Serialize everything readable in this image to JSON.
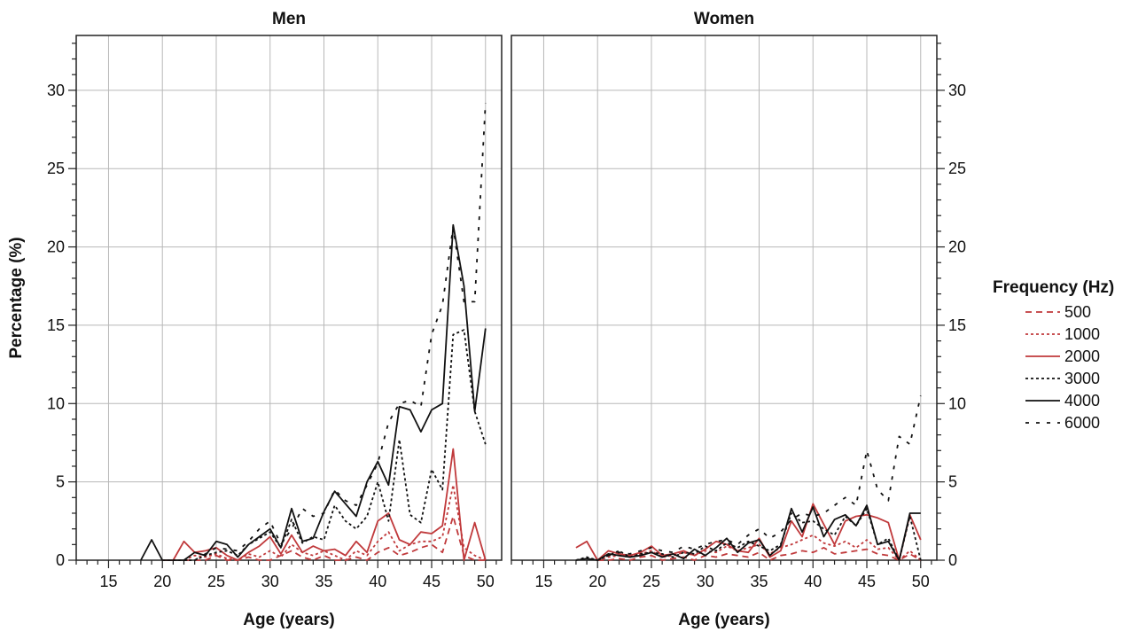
{
  "chart_data": [
    {
      "type": "line",
      "title": "Men",
      "xlabel": "Age (years)",
      "ylabel": "Percentage (%)",
      "xlim": [
        12,
        51.5
      ],
      "ylim": [
        0,
        33.5
      ],
      "xticks": [
        15,
        20,
        25,
        30,
        35,
        40,
        45,
        50
      ],
      "yticks": [
        0,
        5,
        10,
        15,
        20,
        25,
        30
      ],
      "grid": true,
      "series": [
        {
          "name": "500",
          "style": "dash",
          "color": "#c0393b",
          "x": [
            22,
            23,
            24,
            25,
            26,
            27,
            28,
            29,
            30,
            31,
            32,
            33,
            34,
            35,
            36,
            37,
            38,
            39,
            40,
            41,
            42,
            43,
            44,
            45,
            46,
            47,
            48,
            49,
            50
          ],
          "y": [
            0,
            0,
            0,
            0.3,
            0,
            0,
            0.2,
            0,
            0,
            0.3,
            0.6,
            0.2,
            0,
            0.3,
            0,
            0,
            0.2,
            0,
            0.5,
            0.8,
            0.3,
            0.5,
            0.8,
            1.0,
            0.5,
            2.8,
            0.3,
            0,
            0
          ]
        },
        {
          "name": "1000",
          "style": "dot",
          "color": "#c0393b",
          "x": [
            22,
            23,
            24,
            25,
            26,
            27,
            28,
            29,
            30,
            31,
            32,
            33,
            34,
            35,
            36,
            37,
            38,
            39,
            40,
            41,
            42,
            43,
            44,
            45,
            46,
            47,
            48,
            49,
            50
          ],
          "y": [
            0,
            0.3,
            0.2,
            0.4,
            0.1,
            0,
            0.4,
            0.2,
            0.6,
            0.2,
            1.0,
            0.5,
            0.3,
            0.6,
            0.3,
            0,
            0.6,
            0.3,
            1.2,
            1.8,
            0.6,
            1.0,
            1.2,
            1.2,
            1.5,
            4.8,
            0.8,
            0.3,
            0
          ]
        },
        {
          "name": "2000",
          "style": "solid",
          "color": "#c0393b",
          "x": [
            20,
            21,
            22,
            23,
            24,
            25,
            26,
            27,
            28,
            29,
            30,
            31,
            32,
            33,
            34,
            35,
            36,
            37,
            38,
            39,
            40,
            41,
            42,
            43,
            44,
            45,
            46,
            47,
            48,
            49,
            50
          ],
          "y": [
            0,
            0,
            1.2,
            0.5,
            0.6,
            0.8,
            0.3,
            0,
            0.5,
            0.9,
            1.5,
            0.4,
            1.6,
            0.5,
            0.9,
            0.6,
            0.7,
            0.3,
            1.2,
            0.5,
            2.5,
            3.0,
            1.3,
            1.0,
            1.8,
            1.7,
            2.2,
            7.1,
            0,
            2.4,
            0
          ]
        },
        {
          "name": "3000",
          "style": "dot",
          "color": "#111111",
          "x": [
            20,
            21,
            22,
            23,
            24,
            25,
            26,
            27,
            28,
            29,
            30,
            31,
            32,
            33,
            34,
            35,
            36,
            37,
            38,
            39,
            40,
            41,
            42,
            43,
            44,
            45,
            46,
            47,
            48,
            49,
            50
          ],
          "y": [
            0,
            0,
            0,
            0,
            0.3,
            0.5,
            0.6,
            0.3,
            1.0,
            1.4,
            1.8,
            0.8,
            2.6,
            1.1,
            1.5,
            1.3,
            3.5,
            2.5,
            2.0,
            2.8,
            5.0,
            2.5,
            7.7,
            2.9,
            2.4,
            5.8,
            4.5,
            14.4,
            14.7,
            9.5,
            7.4
          ]
        },
        {
          "name": "4000",
          "style": "solid",
          "color": "#111111",
          "x": [
            18,
            19,
            20,
            21,
            22,
            23,
            24,
            25,
            26,
            27,
            28,
            29,
            30,
            31,
            32,
            33,
            34,
            35,
            36,
            37,
            38,
            39,
            40,
            41,
            42,
            43,
            44,
            45,
            46,
            47,
            48,
            49,
            50
          ],
          "y": [
            0,
            1.3,
            0,
            0,
            0,
            0.5,
            0.3,
            1.2,
            1.0,
            0.2,
            1.0,
            1.5,
            2.0,
            0.8,
            3.3,
            1.2,
            1.4,
            3.1,
            4.4,
            3.6,
            2.8,
            5.0,
            6.3,
            4.8,
            9.8,
            9.6,
            8.2,
            9.6,
            10.0,
            21.4,
            17.5,
            9.5,
            14.8
          ]
        },
        {
          "name": "6000",
          "style": "longdash",
          "color": "#111111",
          "x": [
            22,
            23,
            24,
            25,
            26,
            27,
            28,
            29,
            30,
            31,
            32,
            33,
            34,
            35,
            36,
            37,
            38,
            39,
            40,
            41,
            42,
            43,
            44,
            45,
            46,
            47,
            48,
            49,
            50
          ],
          "y": [
            0,
            0,
            0.4,
            0.8,
            0.7,
            0.6,
            1.2,
            2.0,
            2.5,
            1.0,
            2.0,
            3.3,
            2.8,
            3.0,
            4.5,
            3.8,
            3.5,
            4.8,
            6.2,
            8.8,
            10.0,
            10.2,
            9.8,
            14.4,
            16.3,
            21.3,
            16.5,
            16.5,
            29.2
          ]
        }
      ]
    },
    {
      "type": "line",
      "title": "Women",
      "xlabel": "Age (years)",
      "ylabel": "",
      "xlim": [
        12,
        51.5
      ],
      "ylim": [
        0,
        33.5
      ],
      "xticks": [
        15,
        20,
        25,
        30,
        35,
        40,
        45,
        50
      ],
      "yticks": [
        0,
        5,
        10,
        15,
        20,
        25,
        30
      ],
      "grid": true,
      "series": [
        {
          "name": "500",
          "style": "dash",
          "color": "#c0393b",
          "x": [
            20,
            21,
            22,
            23,
            24,
            25,
            26,
            27,
            28,
            29,
            30,
            31,
            32,
            33,
            34,
            35,
            36,
            37,
            38,
            39,
            40,
            41,
            42,
            43,
            44,
            45,
            46,
            47,
            48,
            49,
            50
          ],
          "y": [
            0,
            0,
            0.1,
            0,
            0.2,
            0.3,
            0,
            0.1,
            0.2,
            0,
            0.3,
            0.2,
            0.4,
            0.3,
            0.2,
            0.5,
            0,
            0.3,
            0.4,
            0.6,
            0.5,
            0.8,
            0.4,
            0.5,
            0.6,
            0.7,
            0.4,
            0.3,
            0,
            0.4,
            0
          ]
        },
        {
          "name": "1000",
          "style": "dot",
          "color": "#c0393b",
          "x": [
            20,
            21,
            22,
            23,
            24,
            25,
            26,
            27,
            28,
            29,
            30,
            31,
            32,
            33,
            34,
            35,
            36,
            37,
            38,
            39,
            40,
            41,
            42,
            43,
            44,
            45,
            46,
            47,
            48,
            49,
            50
          ],
          "y": [
            0,
            0.2,
            0.3,
            0.2,
            0.4,
            0.6,
            0.2,
            0.3,
            0.5,
            0.3,
            0.6,
            0.5,
            0.9,
            0.6,
            0.8,
            1.0,
            0.4,
            0.8,
            1.0,
            1.3,
            1.6,
            1.1,
            0.9,
            1.2,
            0.8,
            1.3,
            0.7,
            0.8,
            0,
            0.6,
            0
          ]
        },
        {
          "name": "2000",
          "style": "solid",
          "color": "#c0393b",
          "x": [
            18,
            19,
            20,
            21,
            22,
            23,
            24,
            25,
            26,
            27,
            28,
            29,
            30,
            31,
            32,
            33,
            34,
            35,
            36,
            37,
            38,
            39,
            40,
            41,
            42,
            43,
            44,
            45,
            46,
            47,
            48,
            49,
            50
          ],
          "y": [
            0.8,
            1.2,
            0,
            0.6,
            0.4,
            0.3,
            0.5,
            0.9,
            0.3,
            0.4,
            0.6,
            0.3,
            0.7,
            1.2,
            1.0,
            0.6,
            0.5,
            1.4,
            0.2,
            0.6,
            2.5,
            1.5,
            3.6,
            2.3,
            1.0,
            2.5,
            2.8,
            2.9,
            2.7,
            2.4,
            0,
            2.9,
            1.3
          ]
        },
        {
          "name": "3000",
          "style": "dot",
          "color": "#111111",
          "x": [
            18,
            19,
            20,
            21,
            22,
            23,
            24,
            25,
            26,
            27,
            28,
            29,
            30,
            31,
            32,
            33,
            34,
            35,
            36,
            37,
            38,
            39,
            40,
            41,
            42,
            43,
            44,
            45,
            46,
            47,
            48,
            49,
            50
          ],
          "y": [
            0,
            0.2,
            0,
            0.3,
            0.6,
            0.2,
            0.4,
            0.5,
            0.4,
            0.2,
            0.5,
            0.4,
            0.9,
            0.6,
            1.1,
            0.8,
            1.2,
            0.9,
            0.6,
            1.0,
            3.0,
            2.4,
            2.5,
            2.0,
            1.6,
            2.8,
            2.2,
            3.3,
            1.0,
            1.4,
            0,
            2.8,
            0
          ]
        },
        {
          "name": "4000",
          "style": "solid",
          "color": "#111111",
          "x": [
            18,
            19,
            20,
            21,
            22,
            23,
            24,
            25,
            26,
            27,
            28,
            29,
            30,
            31,
            32,
            33,
            34,
            35,
            36,
            37,
            38,
            39,
            40,
            41,
            42,
            43,
            44,
            45,
            46,
            47,
            48,
            49,
            50
          ],
          "y": [
            0,
            0.1,
            0,
            0.4,
            0.3,
            0.2,
            0.3,
            0.5,
            0.2,
            0.4,
            0.1,
            0.7,
            0.3,
            0.8,
            1.4,
            0.5,
            1.1,
            1.3,
            0.3,
            0.9,
            3.3,
            1.8,
            3.4,
            1.5,
            2.6,
            2.9,
            2.2,
            3.5,
            1.0,
            1.2,
            0,
            3.0,
            3.0
          ]
        },
        {
          "name": "6000",
          "style": "longdash",
          "color": "#111111",
          "x": [
            20,
            21,
            22,
            23,
            24,
            25,
            26,
            27,
            28,
            29,
            30,
            31,
            32,
            33,
            34,
            35,
            36,
            37,
            38,
            39,
            40,
            41,
            42,
            43,
            44,
            45,
            46,
            47,
            48,
            49,
            50
          ],
          "y": [
            0,
            0.3,
            0.5,
            0.4,
            0.6,
            0.8,
            0.6,
            0.5,
            0.9,
            0.7,
            1.0,
            1.2,
            1.3,
            1.0,
            1.6,
            2.0,
            1.4,
            1.8,
            2.6,
            3.0,
            2.8,
            3.0,
            3.5,
            4.0,
            3.5,
            7.0,
            4.5,
            3.8,
            7.9,
            7.4,
            10.5
          ]
        }
      ]
    }
  ],
  "legend": {
    "title": "Frequency (Hz)",
    "position": "right",
    "items": [
      {
        "label": "500",
        "style": "dash",
        "color": "#c0393b"
      },
      {
        "label": "1000",
        "style": "dot",
        "color": "#c0393b"
      },
      {
        "label": "2000",
        "style": "solid",
        "color": "#c0393b"
      },
      {
        "label": "3000",
        "style": "dot",
        "color": "#111111"
      },
      {
        "label": "4000",
        "style": "solid",
        "color": "#111111"
      },
      {
        "label": "6000",
        "style": "longdash",
        "color": "#111111"
      }
    ]
  }
}
